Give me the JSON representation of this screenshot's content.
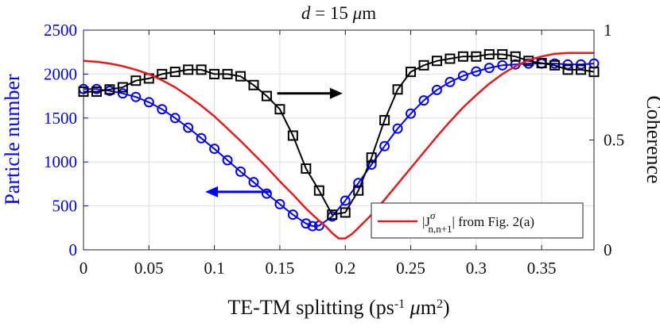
{
  "chart_data": {
    "type": "line",
    "title": "d = 15 μm",
    "title_parts": {
      "var": "d",
      "eq": " = 15 ",
      "mu": "μ",
      "unit": "m"
    },
    "xlabel": "TE-TM splitting (ps⁻¹ μm²)",
    "xlabel_parts": {
      "text": "TE-TM splitting (ps",
      "sup1": "-1",
      "mid": " ",
      "mu": "μ",
      "m": "m",
      "sup2": "2",
      "close": ")"
    },
    "ylabel_left": "Particle number",
    "ylabel_right": "Coherence",
    "xlim": [
      0,
      0.39
    ],
    "ylim_left": [
      0,
      2500
    ],
    "ylim_right": [
      0,
      1
    ],
    "x_ticks": [
      "0",
      "0.05",
      "0.1",
      "0.15",
      "0.2",
      "0.25",
      "0.3",
      "0.35"
    ],
    "x_tick_values": [
      0,
      0.05,
      0.1,
      0.15,
      0.2,
      0.25,
      0.3,
      0.35
    ],
    "y_left_ticks": [
      "0",
      "500",
      "1000",
      "1500",
      "2000",
      "2500"
    ],
    "y_left_tick_values": [
      0,
      500,
      1000,
      1500,
      2000,
      2500
    ],
    "y_right_ticks": [
      "0",
      "0.5",
      "1"
    ],
    "y_right_tick_values": [
      0,
      0.5,
      1
    ],
    "grid": true,
    "colors": {
      "particle": "#0000ff",
      "coherence": "#000000",
      "jcurve": "#e8191c"
    },
    "series": [
      {
        "name": "Particle number",
        "axis": "left",
        "color": "#0000ff",
        "marker": "circle",
        "x": [
          0.0,
          0.01,
          0.02,
          0.03,
          0.04,
          0.05,
          0.06,
          0.07,
          0.08,
          0.09,
          0.1,
          0.11,
          0.12,
          0.13,
          0.14,
          0.15,
          0.16,
          0.17,
          0.175,
          0.18,
          0.19,
          0.2,
          0.21,
          0.22,
          0.23,
          0.24,
          0.25,
          0.26,
          0.27,
          0.28,
          0.29,
          0.3,
          0.31,
          0.32,
          0.33,
          0.34,
          0.35,
          0.36,
          0.37,
          0.38,
          0.39
        ],
        "values": [
          1830,
          1830,
          1810,
          1780,
          1740,
          1680,
          1600,
          1500,
          1390,
          1270,
          1150,
          1020,
          890,
          770,
          640,
          520,
          400,
          300,
          270,
          275,
          380,
          560,
          760,
          970,
          1180,
          1380,
          1550,
          1700,
          1820,
          1910,
          1980,
          2030,
          2070,
          2100,
          2110,
          2120,
          2120,
          2120,
          2110,
          2110,
          2120
        ]
      },
      {
        "name": "Coherence",
        "axis": "right",
        "color": "#000000",
        "marker": "square",
        "x": [
          0.0,
          0.01,
          0.02,
          0.03,
          0.04,
          0.05,
          0.06,
          0.07,
          0.08,
          0.09,
          0.1,
          0.11,
          0.12,
          0.13,
          0.14,
          0.15,
          0.16,
          0.17,
          0.18,
          0.19,
          0.2,
          0.21,
          0.22,
          0.23,
          0.24,
          0.25,
          0.26,
          0.27,
          0.28,
          0.29,
          0.3,
          0.31,
          0.32,
          0.33,
          0.34,
          0.35,
          0.36,
          0.37,
          0.38,
          0.39
        ],
        "values": [
          0.72,
          0.72,
          0.73,
          0.74,
          0.77,
          0.78,
          0.8,
          0.81,
          0.82,
          0.82,
          0.8,
          0.8,
          0.79,
          0.75,
          0.7,
          0.64,
          0.52,
          0.37,
          0.27,
          0.16,
          0.17,
          0.27,
          0.42,
          0.59,
          0.73,
          0.81,
          0.84,
          0.86,
          0.87,
          0.88,
          0.88,
          0.89,
          0.89,
          0.88,
          0.86,
          0.85,
          0.84,
          0.82,
          0.82,
          0.81
        ]
      },
      {
        "name": "|Jσ n,n+1| from Fig. 2(a)",
        "axis": "left",
        "color": "#e8191c",
        "marker": "none",
        "x": [
          0.0,
          0.01,
          0.02,
          0.03,
          0.04,
          0.05,
          0.06,
          0.07,
          0.08,
          0.09,
          0.1,
          0.11,
          0.12,
          0.13,
          0.14,
          0.15,
          0.16,
          0.17,
          0.18,
          0.185,
          0.19,
          0.195,
          0.2,
          0.205,
          0.21,
          0.22,
          0.23,
          0.24,
          0.25,
          0.26,
          0.27,
          0.28,
          0.29,
          0.3,
          0.31,
          0.32,
          0.33,
          0.34,
          0.35,
          0.36,
          0.37,
          0.38,
          0.39
        ],
        "values": [
          2150,
          2140,
          2120,
          2090,
          2050,
          2000,
          1930,
          1850,
          1750,
          1640,
          1520,
          1380,
          1240,
          1090,
          940,
          780,
          630,
          470,
          330,
          270,
          190,
          130,
          130,
          180,
          250,
          400,
          570,
          750,
          930,
          1110,
          1290,
          1460,
          1620,
          1760,
          1890,
          2000,
          2090,
          2160,
          2200,
          2230,
          2240,
          2240,
          2240
        ]
      }
    ],
    "annotations": [
      {
        "type": "arrow",
        "direction": "left",
        "color": "#0000ff",
        "x_from": 0.143,
        "x_to": 0.093,
        "y_left": 660
      },
      {
        "type": "arrow",
        "direction": "right",
        "color": "#000000",
        "x_from": 0.148,
        "x_to": 0.198,
        "y_left": 1780
      }
    ],
    "legend": {
      "position": "bottom-right",
      "entries": [
        {
          "series": 2,
          "parts": {
            "bar1": "|J",
            "sup": "σ",
            "sub": "n,n+1",
            "bar2": "|",
            "rest": " from Fig. 2(a)"
          }
        }
      ]
    }
  }
}
